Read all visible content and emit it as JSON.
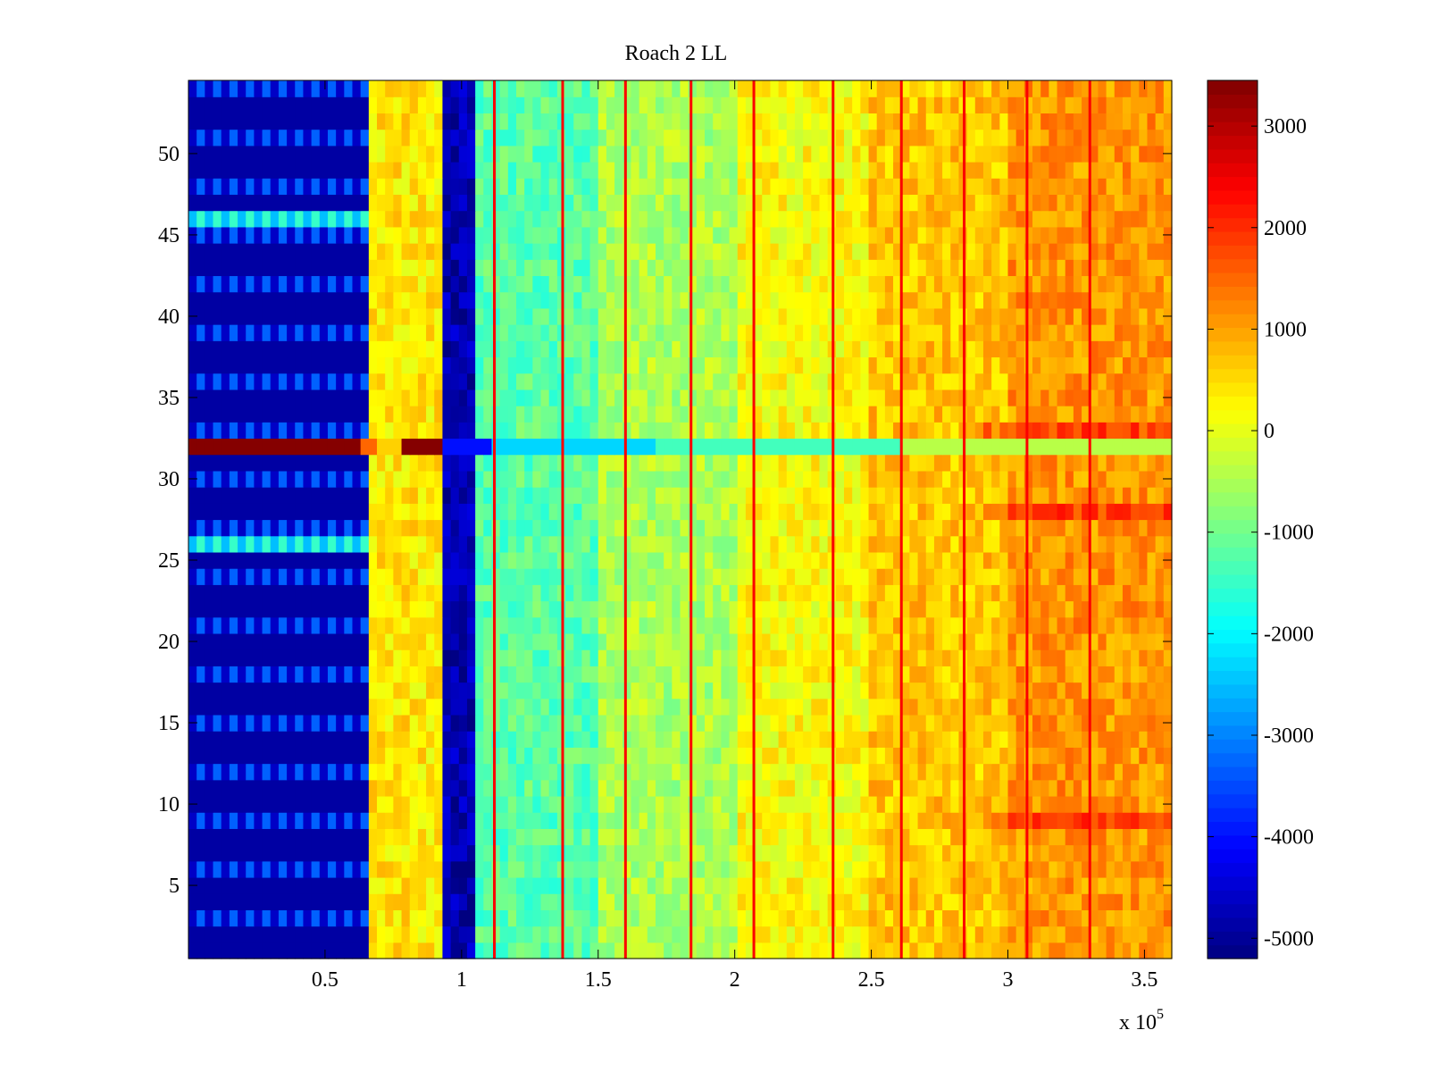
{
  "chart_data": {
    "type": "heatmap",
    "title": "Roach 2 LL",
    "xlabel": "",
    "ylabel": "",
    "x_multiplier_label": "x 10",
    "x_multiplier_exponent": "5",
    "xlim": [
      0,
      3.6
    ],
    "ylim": [
      0.5,
      54.5
    ],
    "x_ticks": [
      0.5,
      1,
      1.5,
      2,
      2.5,
      3,
      3.5
    ],
    "x_tick_labels": [
      "0.5",
      "1",
      "1.5",
      "2",
      "2.5",
      "3",
      "3.5"
    ],
    "y_ticks": [
      5,
      10,
      15,
      20,
      25,
      30,
      35,
      40,
      45,
      50
    ],
    "y_tick_labels": [
      "5",
      "10",
      "15",
      "20",
      "25",
      "30",
      "35",
      "40",
      "45",
      "50"
    ],
    "rows": 54,
    "colorbar": {
      "colormap": "jet",
      "clim": [
        -5200,
        3450
      ],
      "ticks": [
        -5000,
        -4000,
        -3000,
        -2000,
        -1000,
        0,
        1000,
        2000,
        3000
      ],
      "tick_labels": [
        "-5000",
        "-4000",
        "-3000",
        "-2000",
        "-1000",
        "0",
        "1000",
        "2000",
        "3000"
      ]
    },
    "column_profile": [
      {
        "x0": 0.0,
        "x1": 0.67,
        "value": -4900
      },
      {
        "x0": 0.67,
        "x1": 0.94,
        "value": 400
      },
      {
        "x0": 0.94,
        "x1": 1.05,
        "value": -4800
      },
      {
        "x0": 1.05,
        "x1": 1.5,
        "value": -1200
      },
      {
        "x0": 1.5,
        "x1": 2.0,
        "value": -500
      },
      {
        "x0": 2.0,
        "x1": 2.5,
        "value": 200
      },
      {
        "x0": 2.5,
        "x1": 3.0,
        "value": 700
      },
      {
        "x0": 3.0,
        "x1": 3.6,
        "value": 1100
      }
    ],
    "vertical_streak_x": [
      1.12,
      1.37,
      1.6,
      1.84,
      2.07,
      2.36,
      2.61,
      2.84,
      3.07,
      3.3
    ],
    "streak_value": 2400,
    "anomalous_row": 32,
    "anomalous_row_profile": [
      {
        "x0": 0.0,
        "x1": 0.63,
        "value": 3400
      },
      {
        "x0": 0.63,
        "x1": 0.68,
        "value": 1500
      },
      {
        "x0": 0.68,
        "x1": 0.77,
        "value": 600
      },
      {
        "x0": 0.77,
        "x1": 0.93,
        "value": 3400
      },
      {
        "x0": 0.93,
        "x1": 1.1,
        "value": -4000
      },
      {
        "x0": 1.1,
        "x1": 1.7,
        "value": -2300
      },
      {
        "x0": 1.7,
        "x1": 2.6,
        "value": -1400
      },
      {
        "x0": 2.6,
        "x1": 3.6,
        "value": -400
      }
    ],
    "bright_rows_left": [
      26,
      46
    ],
    "hot_rows_right": [
      9,
      28,
      33
    ]
  }
}
